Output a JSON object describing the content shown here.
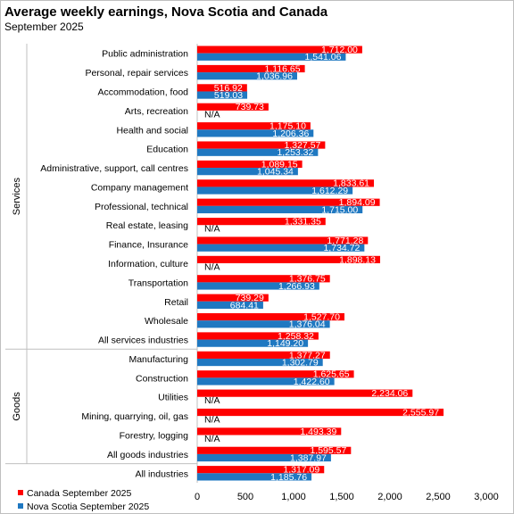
{
  "header": {
    "title": "Average weekly earnings, Nova Scotia and Canada",
    "subtitle": "September 2025"
  },
  "colors": {
    "canada": "#ff0000",
    "nova_scotia": "#1f78c1"
  },
  "chart_data": {
    "type": "bar",
    "orientation": "horizontal",
    "title": "Average weekly earnings, Nova Scotia and Canada",
    "subtitle": "September 2025",
    "groups": [
      {
        "label": "Services",
        "categories": [
          "Public administration",
          "Personal, repair services",
          "Accommodation, food",
          "Arts, recreation",
          "Health and social",
          "Education",
          "Administrative, support, call centres",
          "Company management",
          "Professional, technical",
          "Real estate, leasing",
          "Finance, Insurance",
          "Information, culture",
          "Transportation",
          "Retail",
          "Wholesale",
          "All services industries"
        ]
      },
      {
        "label": "Goods",
        "categories": [
          "Manufacturing",
          "Construction",
          "Utilities",
          "Mining, quarrying, oil, gas",
          "Forestry, logging",
          "All goods industries"
        ]
      }
    ],
    "categories": [
      "Public administration",
      "Personal, repair services",
      "Accommodation, food",
      "Arts, recreation",
      "Health and social",
      "Education",
      "Administrative, support, call centres",
      "Company management",
      "Professional, technical",
      "Real estate, leasing",
      "Finance, Insurance",
      "Information, culture",
      "Transportation",
      "Retail",
      "Wholesale",
      "All services industries",
      "Manufacturing",
      "Construction",
      "Utilities",
      "Mining, quarrying, oil, gas",
      "Forestry, logging",
      "All goods industries",
      "All industries"
    ],
    "series": [
      {
        "name": "Canada September 2025",
        "color": "#ff0000",
        "values": [
          1712.0,
          1116.65,
          516.92,
          739.73,
          1175.1,
          1327.57,
          1089.15,
          1833.61,
          1894.09,
          1331.35,
          1771.28,
          1898.13,
          1376.75,
          739.29,
          1527.7,
          1258.32,
          1377.27,
          1625.65,
          2234.06,
          2555.97,
          1493.39,
          1595.57,
          1317.09
        ],
        "labels": [
          "1,712.00",
          "1,116.65",
          "516.92",
          "739.73",
          "1,175.10",
          "1,327.57",
          "1,089.15",
          "1,833.61",
          "1,894.09",
          "1,331.35",
          "1,771.28",
          "1,898.13",
          "1,376.75",
          "739.29",
          "1,527.70",
          "1,258.32",
          "1,377.27",
          "1,625.65",
          "2,234.06",
          "2,555.97",
          "1,493.39",
          "1,595.57",
          "1,317.09"
        ]
      },
      {
        "name": "Nova Scotia September 2025",
        "color": "#1f78c1",
        "values": [
          1541.06,
          1036.96,
          519.03,
          null,
          1206.36,
          1253.32,
          1045.34,
          1612.29,
          1715.0,
          null,
          1734.72,
          null,
          1266.93,
          684.41,
          1376.04,
          1149.2,
          1302.79,
          1422.6,
          null,
          null,
          null,
          1387.97,
          1185.76
        ],
        "labels": [
          "1,541.06",
          "1,036.96",
          "519.03",
          "N/A",
          "1,206.36",
          "1,253.32",
          "1,045.34",
          "1,612.29",
          "1,715.00",
          "N/A",
          "1,734.72",
          "N/A",
          "1,266.93",
          "684.41",
          "1,376.04",
          "1,149.20",
          "1,302.79",
          "1,422.60",
          "N/A",
          "N/A",
          "N/A",
          "1,387.97",
          "1,185.76"
        ]
      }
    ],
    "x_ticks": [
      "0",
      "500",
      "1,000",
      "1,500",
      "2,000",
      "2,500",
      "3,000"
    ],
    "xlim": [
      0,
      3000
    ],
    "legend_position": "bottom-left",
    "grid": false
  }
}
